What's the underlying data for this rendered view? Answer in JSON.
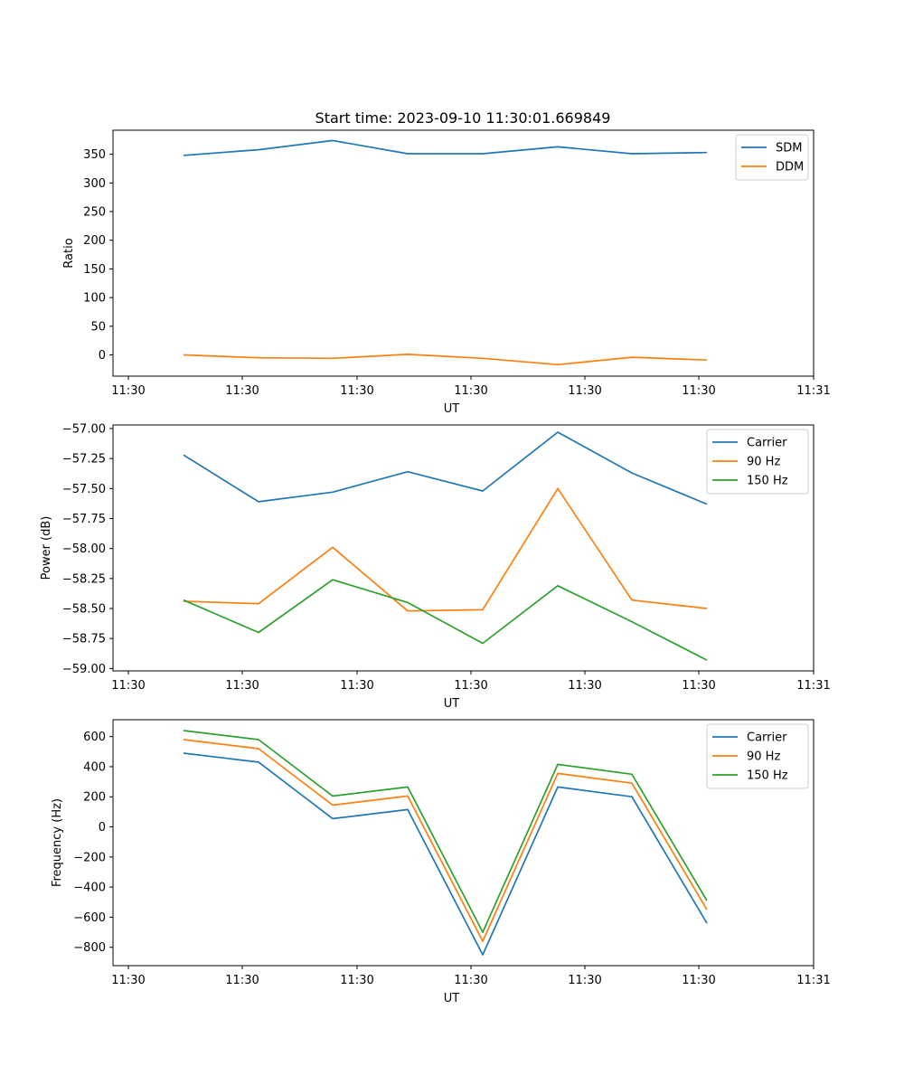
{
  "figure": {
    "title": "Start time: 2023-09-10 11:30:01.669849"
  },
  "chart_data": [
    {
      "type": "line",
      "xlabel": "UT",
      "ylabel": "Ratio",
      "x_tick_labels": [
        "11:30",
        "11:30",
        "11:30",
        "11:30",
        "11:30",
        "11:30",
        "11:31"
      ],
      "y_ticks": [
        0,
        50,
        100,
        150,
        200,
        250,
        300,
        350
      ],
      "ylim": [
        -37,
        392
      ],
      "legend_position": "top-right",
      "series": [
        {
          "name": "SDM",
          "color": "#1f77b4",
          "values": [
            348,
            358,
            374,
            351,
            351,
            363,
            351,
            353
          ]
        },
        {
          "name": "DDM",
          "color": "#ff7f0e",
          "values": [
            0,
            -5,
            -6,
            1,
            -6,
            -17,
            -4,
            -9
          ]
        }
      ]
    },
    {
      "type": "line",
      "xlabel": "UT",
      "ylabel": "Power (dB)",
      "x_tick_labels": [
        "11:30",
        "11:30",
        "11:30",
        "11:30",
        "11:30",
        "11:30",
        "11:31"
      ],
      "y_ticks": [
        -57.0,
        -57.25,
        -57.5,
        -57.75,
        -58.0,
        -58.25,
        -58.5,
        -58.75,
        -59.0
      ],
      "y_tick_labels": [
        "−57.00",
        "−57.25",
        "−57.50",
        "−57.75",
        "−58.00",
        "−58.25",
        "−58.50",
        "−58.75",
        "−59.00"
      ],
      "ylim": [
        -59.02,
        -56.97
      ],
      "legend_position": "top-right",
      "series": [
        {
          "name": "Carrier",
          "color": "#1f77b4",
          "values": [
            -57.22,
            -57.61,
            -57.53,
            -57.36,
            -57.52,
            -57.03,
            -57.37,
            -57.63
          ]
        },
        {
          "name": "90 Hz",
          "color": "#ff7f0e",
          "values": [
            -58.44,
            -58.46,
            -57.99,
            -58.52,
            -58.51,
            -57.5,
            -58.43,
            -58.5
          ]
        },
        {
          "name": "150 Hz",
          "color": "#2ca02c",
          "values": [
            -58.43,
            -58.7,
            -58.26,
            -58.45,
            -58.79,
            -58.31,
            -58.61,
            -58.93
          ]
        }
      ]
    },
    {
      "type": "line",
      "xlabel": "UT",
      "ylabel": "Frequency (Hz)",
      "x_tick_labels": [
        "11:30",
        "11:30",
        "11:30",
        "11:30",
        "11:30",
        "11:30",
        "11:31"
      ],
      "y_ticks": [
        600,
        400,
        200,
        0,
        -200,
        -400,
        -600,
        -800
      ],
      "y_tick_labels": [
        "600",
        "400",
        "200",
        "0",
        "−200",
        "−400",
        "−600",
        "−800"
      ],
      "ylim": [
        -922,
        712
      ],
      "legend_position": "top-right",
      "series": [
        {
          "name": "Carrier",
          "color": "#1f77b4",
          "values": [
            490,
            430,
            55,
            115,
            -850,
            265,
            200,
            -640
          ]
        },
        {
          "name": "90 Hz",
          "color": "#ff7f0e",
          "values": [
            580,
            520,
            145,
            205,
            -760,
            355,
            290,
            -550
          ]
        },
        {
          "name": "150 Hz",
          "color": "#2ca02c",
          "values": [
            640,
            580,
            205,
            265,
            -700,
            415,
            350,
            -490
          ]
        }
      ]
    }
  ]
}
